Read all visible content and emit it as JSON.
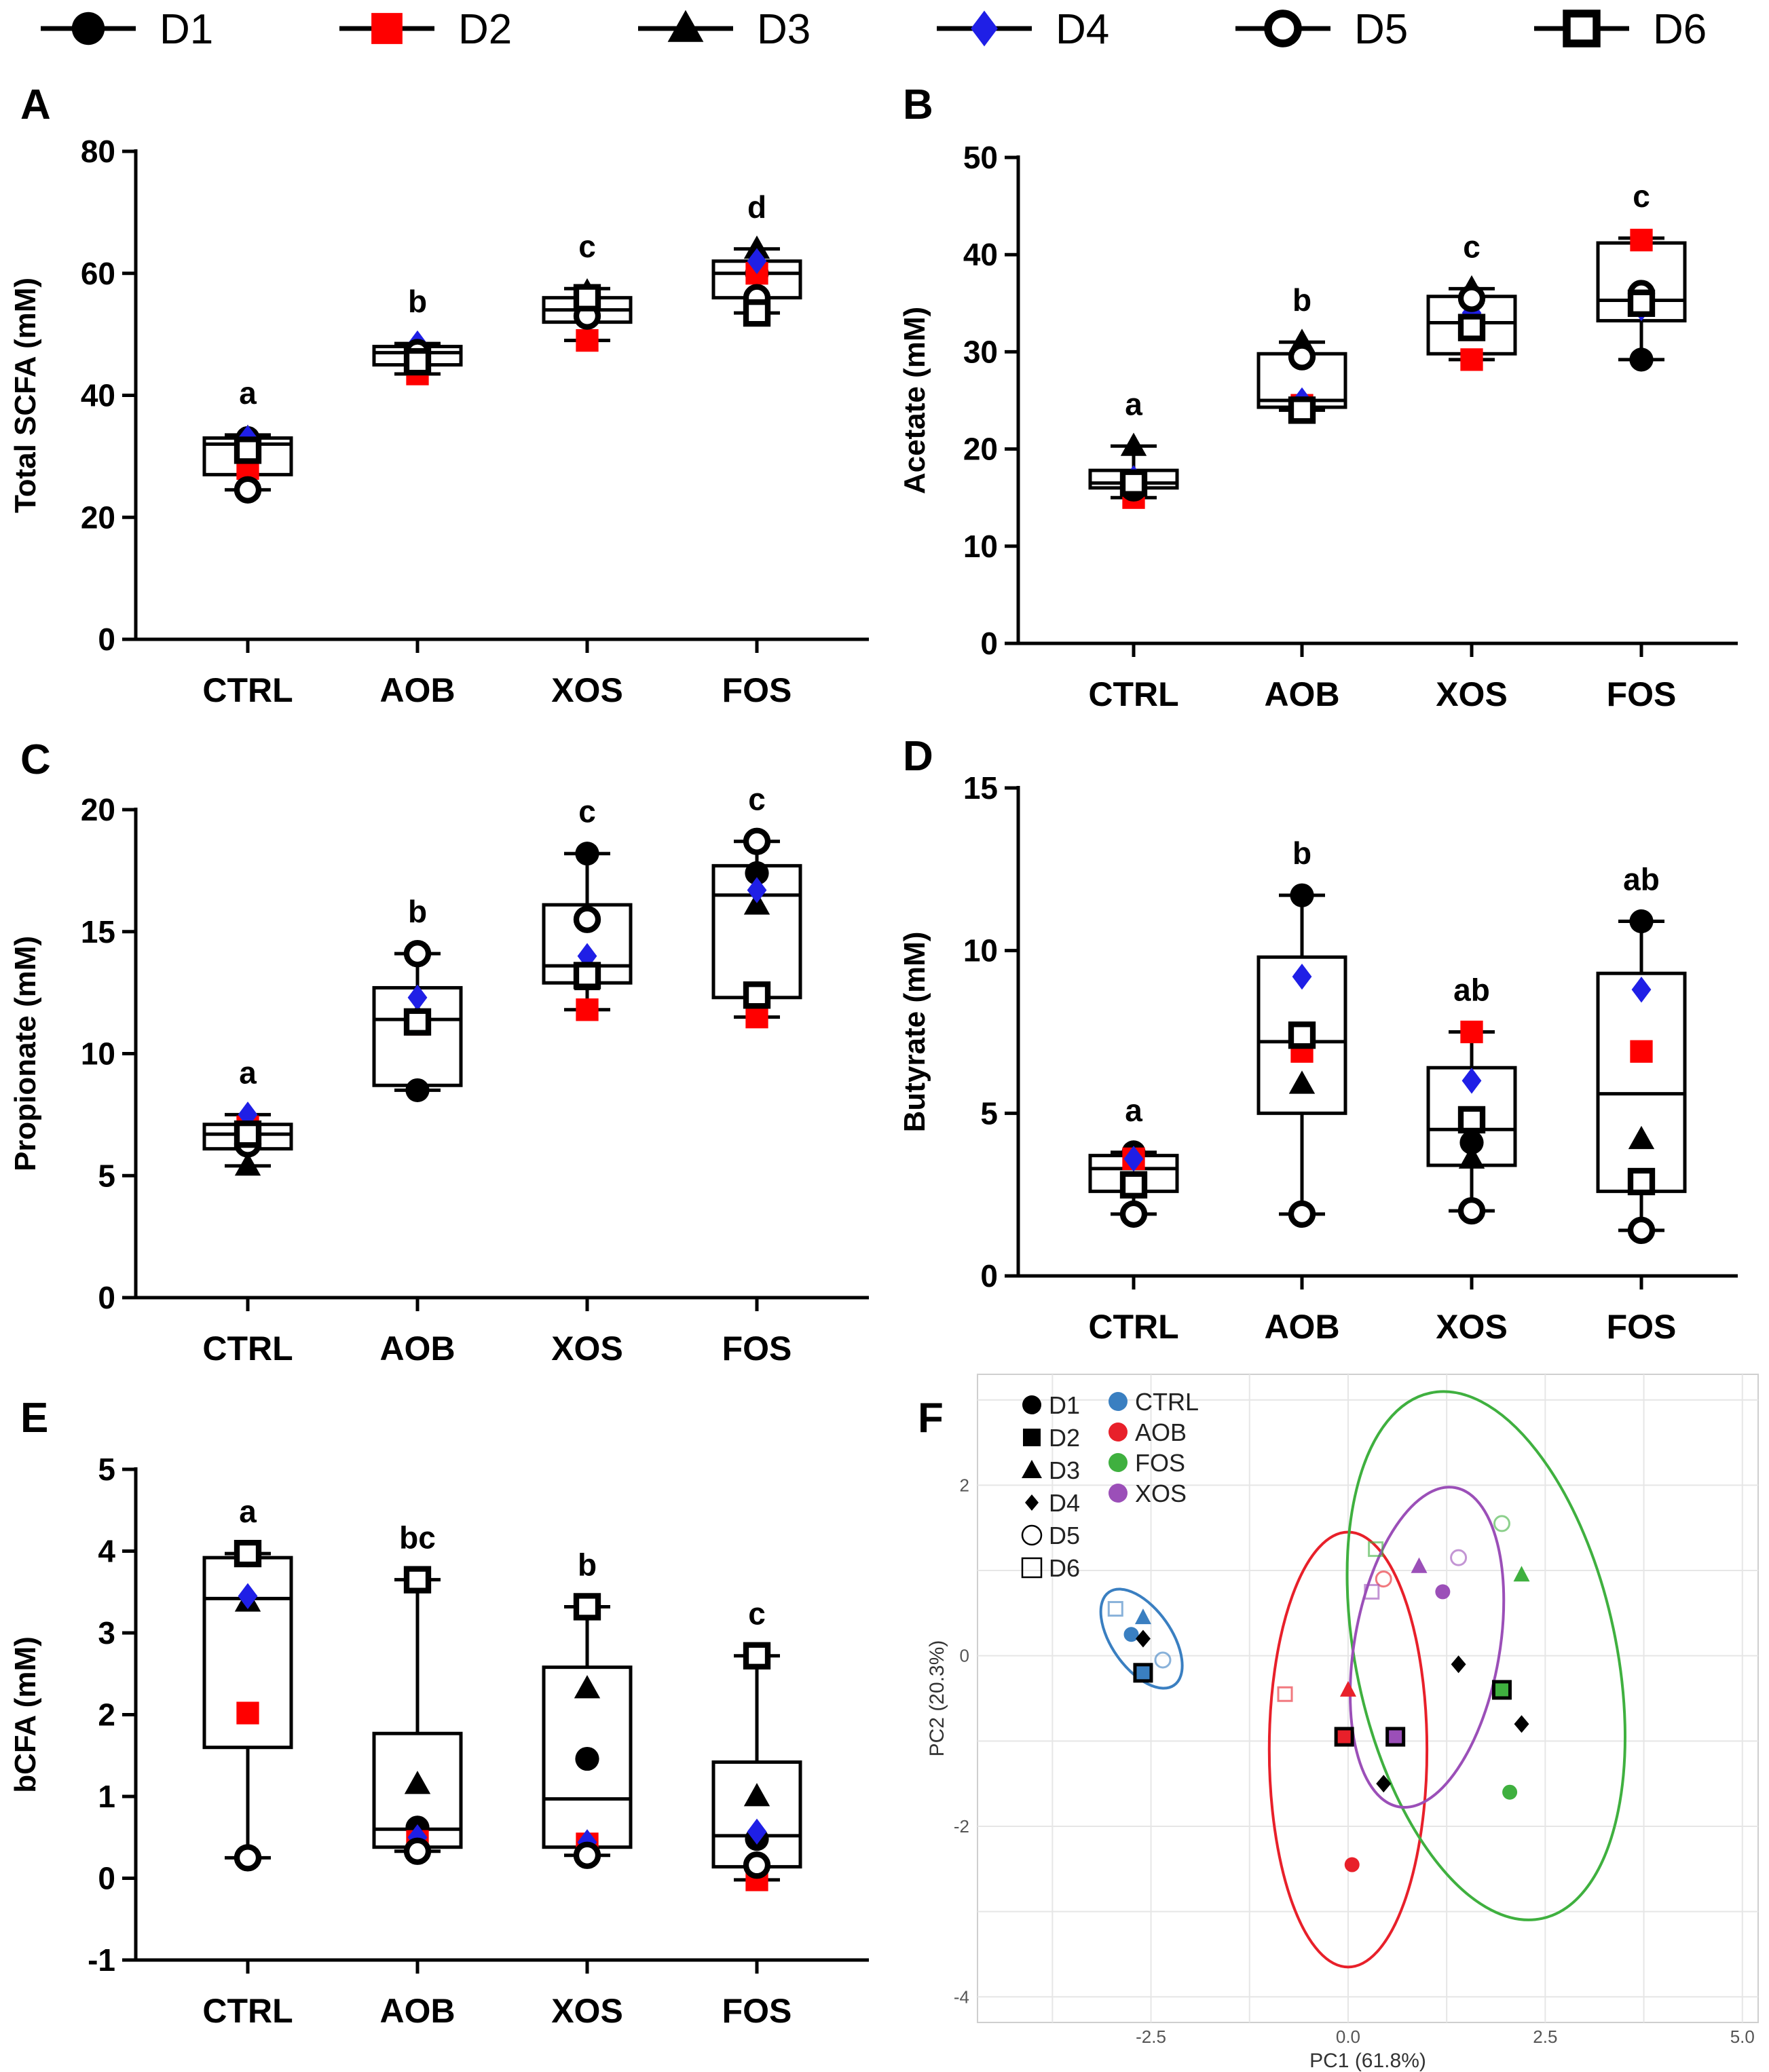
{
  "legend": {
    "items": [
      {
        "label": "D1",
        "shape": "circle-filled"
      },
      {
        "label": "D2",
        "shape": "square-red"
      },
      {
        "label": "D3",
        "shape": "triangle-filled"
      },
      {
        "label": "D4",
        "shape": "diamond-blue"
      },
      {
        "label": "D5",
        "shape": "circle-open"
      },
      {
        "label": "D6",
        "shape": "square-open"
      }
    ]
  },
  "colors": {
    "red": "#ff0000",
    "blue": "#1f1fe6",
    "black": "#000000",
    "ctrl": "#3a7fc1",
    "aob": "#e8202a",
    "fos": "#3fb03f",
    "xos": "#9b4fb8"
  },
  "chart_data": [
    {
      "type": "box",
      "panel": "A",
      "ylabel": "Total SCFA (mM)",
      "ylim": [
        0,
        80
      ],
      "yticks": [
        0,
        20,
        40,
        60,
        80
      ],
      "categories": [
        "CTRL",
        "AOB",
        "XOS",
        "FOS"
      ],
      "boxes": [
        {
          "min": 24.5,
          "q1": 27,
          "median": 32,
          "q3": 33,
          "max": 33.5,
          "letter": "a"
        },
        {
          "min": 43.5,
          "q1": 45,
          "median": 47,
          "q3": 48,
          "max": 48.5,
          "letter": "b"
        },
        {
          "min": 49,
          "q1": 52,
          "median": 54,
          "q3": 56,
          "max": 57.5,
          "letter": "c"
        },
        {
          "min": 53.5,
          "q1": 56,
          "median": 60,
          "q3": 62,
          "max": 64,
          "letter": "d"
        }
      ],
      "points": [
        {
          "D1": 33,
          "D2": 28,
          "D3": 33,
          "D4": 33,
          "D5": 24.5,
          "D6": 31
        },
        {
          "D1": 46.5,
          "D2": 43.5,
          "D3": 48,
          "D4": 48.5,
          "D5": 47,
          "D6": 45.5
        },
        {
          "D1": 55,
          "D2": 49,
          "D3": 57,
          "D4": 55.5,
          "D5": 53,
          "D6": 56
        },
        {
          "D1": 60,
          "D2": 60,
          "D3": 64,
          "D4": 62,
          "D5": 56,
          "D6": 53.5
        }
      ]
    },
    {
      "type": "box",
      "panel": "B",
      "ylabel": "Acetate (mM)",
      "ylim": [
        0,
        50
      ],
      "yticks": [
        0,
        10,
        20,
        30,
        40,
        50
      ],
      "categories": [
        "CTRL",
        "AOB",
        "XOS",
        "FOS"
      ],
      "boxes": [
        {
          "min": 15,
          "q1": 16,
          "median": 16.5,
          "q3": 17.8,
          "max": 20.3,
          "letter": "a"
        },
        {
          "min": 24,
          "q1": 24.3,
          "median": 25,
          "q3": 29.8,
          "max": 31,
          "letter": "b"
        },
        {
          "min": 29.2,
          "q1": 29.8,
          "median": 33,
          "q3": 35.7,
          "max": 36.5,
          "letter": "c"
        },
        {
          "min": 29.2,
          "q1": 33.2,
          "median": 35.3,
          "q3": 41.2,
          "max": 41.7,
          "letter": "c"
        }
      ],
      "points": [
        {
          "D1": 16.2,
          "D2": 15,
          "D3": 20.3,
          "D4": 17,
          "D5": 16,
          "D6": 16.5
        },
        {
          "D1": 24.5,
          "D2": 24.5,
          "D3": 31,
          "D4": 25,
          "D5": 29.5,
          "D6": 24
        },
        {
          "D1": 33,
          "D2": 29.2,
          "D3": 36.5,
          "D4": 34,
          "D5": 35.5,
          "D6": 32.5
        },
        {
          "D1": 29.2,
          "D2": 41.5,
          "D3": 35,
          "D4": 34.5,
          "D5": 36,
          "D6": 35
        }
      ]
    },
    {
      "type": "box",
      "panel": "C",
      "ylabel": "Propionate (mM)",
      "ylim": [
        0,
        20
      ],
      "yticks": [
        0,
        5,
        10,
        15,
        20
      ],
      "categories": [
        "CTRL",
        "AOB",
        "XOS",
        "FOS"
      ],
      "boxes": [
        {
          "min": 5.4,
          "q1": 6.1,
          "median": 6.7,
          "q3": 7.1,
          "max": 7.5,
          "letter": "a"
        },
        {
          "min": 8.5,
          "q1": 8.7,
          "median": 11.4,
          "q3": 12.7,
          "max": 14.1,
          "letter": "b"
        },
        {
          "min": 11.8,
          "q1": 12.9,
          "median": 13.6,
          "q3": 16.1,
          "max": 18.2,
          "letter": "c"
        },
        {
          "min": 11.5,
          "q1": 12.3,
          "median": 16.5,
          "q3": 17.7,
          "max": 18.7,
          "letter": "c"
        }
      ],
      "points": [
        {
          "D1": 7,
          "D2": 7,
          "D3": 5.4,
          "D4": 7.5,
          "D5": 6.3,
          "D6": 6.7
        },
        {
          "D1": 8.5,
          "D2": 11.2,
          "D3": 11.5,
          "D4": 12.3,
          "D5": 14.1,
          "D6": 11.3
        },
        {
          "D1": 18.2,
          "D2": 11.8,
          "D3": 13,
          "D4": 14,
          "D5": 15.5,
          "D6": 13.2
        },
        {
          "D1": 17.4,
          "D2": 11.5,
          "D3": 16.1,
          "D4": 16.7,
          "D5": 18.7,
          "D6": 12.4
        }
      ]
    },
    {
      "type": "box",
      "panel": "D",
      "ylabel": "Butyrate (mM)",
      "ylim": [
        0,
        15
      ],
      "yticks": [
        0,
        5,
        10,
        15
      ],
      "categories": [
        "CTRL",
        "AOB",
        "XOS",
        "FOS"
      ],
      "boxes": [
        {
          "min": 1.9,
          "q1": 2.6,
          "median": 3.3,
          "q3": 3.7,
          "max": 3.8,
          "letter": "a"
        },
        {
          "min": 1.9,
          "q1": 5,
          "median": 7.2,
          "q3": 9.8,
          "max": 11.7,
          "letter": "b"
        },
        {
          "min": 2,
          "q1": 3.4,
          "median": 4.5,
          "q3": 6.4,
          "max": 7.5,
          "letter": "ab"
        },
        {
          "min": 1.4,
          "q1": 2.6,
          "median": 5.6,
          "q3": 9.3,
          "max": 10.9,
          "letter": "ab"
        }
      ],
      "points": [
        {
          "D1": 3.8,
          "D2": 3.6,
          "D3": 2.7,
          "D4": 3.6,
          "D5": 1.9,
          "D6": 2.8
        },
        {
          "D1": 11.7,
          "D2": 6.9,
          "D3": 5.9,
          "D4": 9.2,
          "D5": 1.9,
          "D6": 7.4
        },
        {
          "D1": 4.1,
          "D2": 7.5,
          "D3": 3.6,
          "D4": 6,
          "D5": 2,
          "D6": 4.8
        },
        {
          "D1": 10.9,
          "D2": 6.9,
          "D3": 4.2,
          "D4": 8.8,
          "D5": 1.4,
          "D6": 2.9
        }
      ]
    },
    {
      "type": "box",
      "panel": "E",
      "ylabel": "bCFA (mM)",
      "ylim": [
        -1,
        5
      ],
      "yticks": [
        -1,
        0,
        1,
        2,
        3,
        4,
        5
      ],
      "categories": [
        "CTRL",
        "AOB",
        "XOS",
        "FOS"
      ],
      "boxes": [
        {
          "min": 0.25,
          "q1": 1.6,
          "median": 3.42,
          "q3": 3.92,
          "max": 3.97,
          "letter": "a"
        },
        {
          "min": 0.33,
          "q1": 0.38,
          "median": 0.6,
          "q3": 1.77,
          "max": 3.65,
          "letter": "bc"
        },
        {
          "min": 0.28,
          "q1": 0.38,
          "median": 0.97,
          "q3": 2.58,
          "max": 3.32,
          "letter": "b"
        },
        {
          "min": -0.02,
          "q1": 0.14,
          "median": 0.52,
          "q3": 1.42,
          "max": 2.72,
          "letter": "c"
        }
      ],
      "points": [
        {
          "D1": 3.95,
          "D2": 2.02,
          "D3": 3.38,
          "D4": 3.45,
          "D5": 0.25,
          "D6": 3.97
        },
        {
          "D1": 0.62,
          "D2": 0.45,
          "D3": 1.15,
          "D4": 0.5,
          "D5": 0.33,
          "D6": 3.65
        },
        {
          "D1": 1.46,
          "D2": 0.42,
          "D3": 2.32,
          "D4": 0.44,
          "D5": 0.28,
          "D6": 3.32
        },
        {
          "D1": 0.48,
          "D2": -0.02,
          "D3": 1,
          "D4": 0.57,
          "D5": 0.16,
          "D6": 2.72
        }
      ]
    },
    {
      "type": "scatter",
      "panel": "F",
      "xlabel": "PC1 (61.8%)",
      "ylabel": "PC2 (20.3%)",
      "xlim": [
        -4.7,
        5.2
      ],
      "ylim": [
        -4.3,
        3.3
      ],
      "xticks": [
        -2.5,
        0.0,
        2.5,
        5.0
      ],
      "xtick_labels": [
        "-2.5",
        "0.0",
        "2.5",
        "5.0"
      ],
      "yticks": [
        -4,
        -2,
        0,
        2
      ],
      "ytick_labels": [
        "-4",
        "-2",
        "0",
        "2"
      ],
      "legend_donors": [
        "D1",
        "D2",
        "D3",
        "D4",
        "D5",
        "D6"
      ],
      "legend_groups": [
        "CTRL",
        "AOB",
        "FOS",
        "XOS"
      ],
      "points": [
        {
          "group": "CTRL",
          "donor": "D1",
          "x": -2.75,
          "y": 0.25
        },
        {
          "group": "CTRL",
          "donor": "D2",
          "x": -2.6,
          "y": -0.2
        },
        {
          "group": "CTRL",
          "donor": "D3",
          "x": -2.6,
          "y": 0.45
        },
        {
          "group": "CTRL",
          "donor": "D4",
          "x": -2.6,
          "y": 0.2
        },
        {
          "group": "CTRL",
          "donor": "D5",
          "x": -2.35,
          "y": -0.05
        },
        {
          "group": "CTRL",
          "donor": "D6",
          "x": -2.95,
          "y": 0.55
        },
        {
          "group": "AOB",
          "donor": "D1",
          "x": 0.05,
          "y": -2.45
        },
        {
          "group": "AOB",
          "donor": "D2",
          "x": -0.05,
          "y": -0.95
        },
        {
          "group": "AOB",
          "donor": "D3",
          "x": 0.0,
          "y": -0.4
        },
        {
          "group": "AOB",
          "donor": "D4",
          "x": 0.45,
          "y": -1.5
        },
        {
          "group": "AOB",
          "donor": "D5",
          "x": 0.45,
          "y": 0.9
        },
        {
          "group": "AOB",
          "donor": "D6",
          "x": -0.8,
          "y": -0.45
        },
        {
          "group": "FOS",
          "donor": "D1",
          "x": 2.05,
          "y": -1.6
        },
        {
          "group": "FOS",
          "donor": "D2",
          "x": 1.95,
          "y": -0.4
        },
        {
          "group": "FOS",
          "donor": "D3",
          "x": 2.2,
          "y": 0.95
        },
        {
          "group": "FOS",
          "donor": "D4",
          "x": 2.2,
          "y": -0.8
        },
        {
          "group": "FOS",
          "donor": "D5",
          "x": 1.95,
          "y": 1.55
        },
        {
          "group": "FOS",
          "donor": "D6",
          "x": 0.35,
          "y": 1.25
        },
        {
          "group": "XOS",
          "donor": "D1",
          "x": 1.2,
          "y": 0.75
        },
        {
          "group": "XOS",
          "donor": "D2",
          "x": 0.6,
          "y": -0.95
        },
        {
          "group": "XOS",
          "donor": "D3",
          "x": 0.9,
          "y": 1.05
        },
        {
          "group": "XOS",
          "donor": "D4",
          "x": 1.4,
          "y": -0.1
        },
        {
          "group": "XOS",
          "donor": "D5",
          "x": 1.4,
          "y": 1.15
        },
        {
          "group": "XOS",
          "donor": "D6",
          "x": 0.3,
          "y": 0.75
        }
      ],
      "ellipses": [
        {
          "group": "CTRL",
          "cx": -2.62,
          "cy": 0.2,
          "rx": 0.72,
          "ry": 0.35,
          "angle_deg": 55
        },
        {
          "group": "AOB",
          "cx": 0.0,
          "cy": -1.1,
          "rx": 1.0,
          "ry": 2.55,
          "angle_deg": 0
        },
        {
          "group": "FOS",
          "cx": 1.75,
          "cy": 0.0,
          "rx": 1.65,
          "ry": 3.15,
          "angle_deg": -12
        },
        {
          "group": "XOS",
          "cx": 1.0,
          "cy": 0.1,
          "rx": 0.92,
          "ry": 1.9,
          "angle_deg": 10
        }
      ]
    }
  ],
  "panel_letters": [
    "A",
    "B",
    "C",
    "D",
    "E",
    "F"
  ]
}
